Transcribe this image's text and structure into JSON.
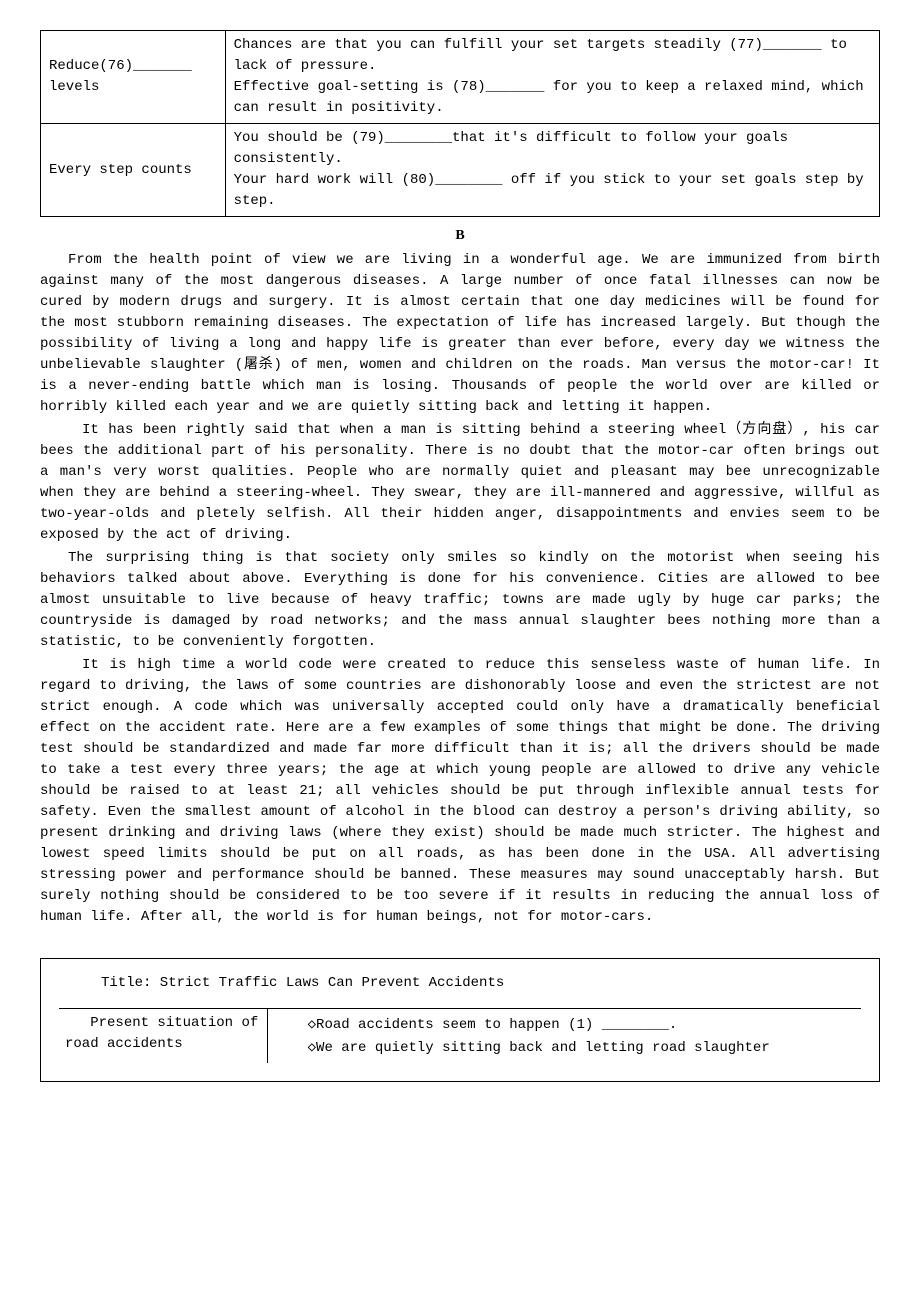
{
  "table1": {
    "rows": [
      {
        "left": "Reduce(76)_______ levels",
        "right": "Chances are that you can fulfill your set targets steadily (77)_______ to lack of pressure.\nEffective goal-setting is (78)_______ for you to keep a relaxed mind, which can result in positivity."
      },
      {
        "left": "Every step counts",
        "right": "You should be (79)________that it's difficult to follow your goals consistently.\nYour hard work will (80)________ off if you stick to your set goals step by step."
      }
    ]
  },
  "section_label": "B",
  "paragraphs": [
    "From the health point of view we are living in a wonderful age. We are immunized from birth against many of the most dangerous diseases. A large number of once fatal illnesses can now be cured by modern drugs and surgery. It is almost certain that one day medicines will be found for the most stubborn remaining diseases. The expectation of life has increased largely. But though the possibility of living a long and happy life is greater than ever before, every day we witness the unbelievable slaughter (屠杀) of men, women and children on the roads. Man versus the motor-car! It is a never-ending battle which man is losing. Thousands of people the world over are killed or horribly killed each year and we are quietly sitting back and letting it happen.",
    "It has been rightly said that when a man is sitting behind a steering wheel（方向盘）, his car bees the additional part of his personality. There is no doubt that the motor-car often brings out a man's very worst qualities. People who are normally quiet and pleasant may bee unrecognizable when they are behind a steering-wheel. They swear, they are ill-mannered and aggressive, willful as two-year-olds and pletely selfish. All their hidden anger, disappointments and envies seem to be exposed by the act of driving.",
    "The surprising thing is that society only smiles so kindly on the motorist when seeing his behaviors talked about above. Everything is done for his convenience. Cities are allowed to bee almost unsuitable to live because of heavy traffic; towns are made ugly by huge car parks; the countryside is damaged by road networks; and the mass annual slaughter bees nothing more than a statistic, to be conveniently forgotten.",
    "It is high time a world code were created to reduce this senseless waste of human life. In regard to driving, the laws of some countries are dishonorably loose and even the strictest are not strict enough. A code which was universally accepted could only have a dramatically beneficial effect on the accident rate. Here are a few examples of some things that might be done. The driving test should be standardized and made far more difficult than it is; all the drivers should be made to take a test every three years; the age at which young people are allowed to drive any vehicle should be raised to at least 21; all vehicles should be put through inflexible annual tests for safety. Even the smallest amount of alcohol in the blood can destroy a person's driving ability, so present drinking and driving laws (where they exist) should be made much stricter. The highest and lowest speed limits should be put on all roads, as has been done in the USA. All advertising stressing power and performance should be banned. These measures may sound unacceptably harsh. But surely nothing should be considered to be too severe if it results in reducing the annual loss of human life. After all, the world is for human beings, not for motor-cars."
  ],
  "box": {
    "title": "Title: Strict Traffic Laws Can Prevent Accidents",
    "left": "   Present situation of road accidents",
    "right_line1": "◇Road accidents seem to happen (1) ________.",
    "right_line2": "◇We are quietly sitting back and letting road slaughter"
  }
}
